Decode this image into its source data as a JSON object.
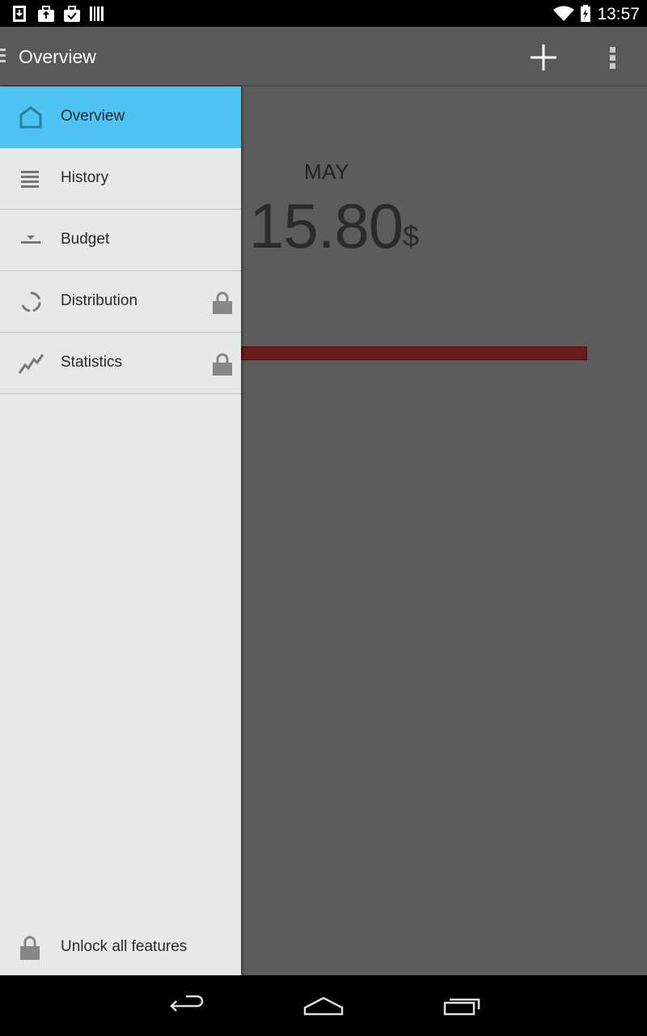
{
  "status_bar": {
    "time": "13:57",
    "left_icons": [
      "download-icon",
      "briefcase-upload-icon",
      "briefcase-check-icon",
      "barcode-icon"
    ],
    "right_icons": [
      "wifi-icon",
      "battery-charging-icon"
    ]
  },
  "action_bar": {
    "title": "Overview",
    "actions": [
      "add-icon",
      "overflow-menu-icon"
    ]
  },
  "main": {
    "month": "MAY",
    "amount": "15.80",
    "currency": "$",
    "budget_progress": 1.0,
    "budget_bar_color": "#6a1b1b"
  },
  "drawer": {
    "items": [
      {
        "label": "Overview",
        "icon": "home-icon",
        "active": true,
        "locked": false
      },
      {
        "label": "History",
        "icon": "list-icon",
        "active": false,
        "locked": false
      },
      {
        "label": "Budget",
        "icon": "budget-icon",
        "active": false,
        "locked": false
      },
      {
        "label": "Distribution",
        "icon": "donut-icon",
        "active": false,
        "locked": true
      },
      {
        "label": "Statistics",
        "icon": "chart-line-icon",
        "active": false,
        "locked": true
      }
    ],
    "unlock_label": "Unlock all features",
    "active_color": "#4fc3f1"
  },
  "nav_bar": {
    "buttons": [
      "back-icon",
      "home-nav-icon",
      "recents-icon"
    ]
  }
}
